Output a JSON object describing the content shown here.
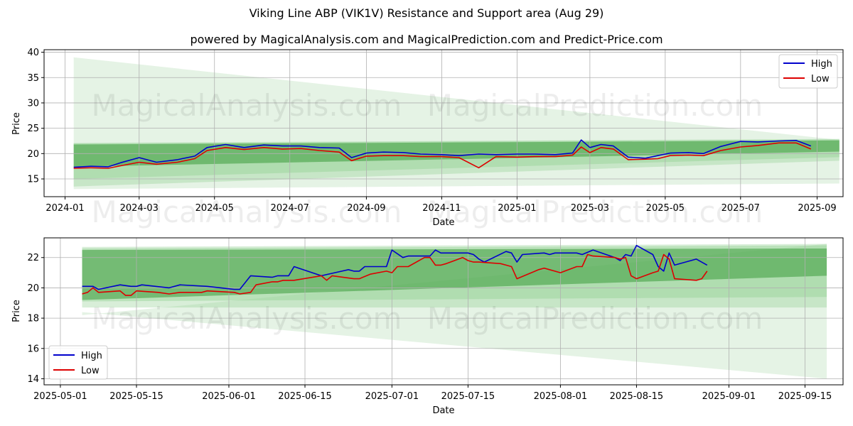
{
  "title": "Viking Line ABP (VIK1V) Resistance and Support area (Aug 29)",
  "subtitle": "powered by MagicalAnalysis.com and MagicalPrediction.com and Predict-Price.com",
  "watermarks": {
    "left": "MagicalAnalysis.com",
    "right": "MagicalPrediction.com"
  },
  "colors": {
    "high": "#0000cc",
    "low": "#dd0000",
    "band_dark": "#3a9a3a",
    "band_light": "#8fcf8f",
    "band_faint": "#cfe9cf"
  },
  "chart_data": [
    {
      "type": "line",
      "xlabel": "Date",
      "ylabel": "Price",
      "x_ticks": [
        "2024-01",
        "2024-03",
        "2024-05",
        "2024-07",
        "2024-09",
        "2024-11",
        "2025-01",
        "2025-03",
        "2025-05",
        "2025-07",
        "2025-09"
      ],
      "y_ticks": [
        "15",
        "20",
        "25",
        "30",
        "35",
        "40"
      ],
      "ylim": [
        11.5,
        40.5
      ],
      "grid": true,
      "legend": "top-right",
      "series": [
        {
          "name": "High",
          "x": [
            "2024-01-08",
            "2024-01-22",
            "2024-02-05",
            "2024-02-15",
            "2024-03-01",
            "2024-03-15",
            "2024-04-01",
            "2024-04-15",
            "2024-04-25",
            "2024-05-10",
            "2024-05-25",
            "2024-06-10",
            "2024-06-25",
            "2024-07-10",
            "2024-07-25",
            "2024-08-10",
            "2024-08-20",
            "2024-09-01",
            "2024-09-15",
            "2024-10-01",
            "2024-10-15",
            "2024-11-01",
            "2024-11-15",
            "2024-12-01",
            "2024-12-15",
            "2025-01-01",
            "2025-01-15",
            "2025-02-01",
            "2025-02-15",
            "2025-02-22",
            "2025-03-01",
            "2025-03-10",
            "2025-03-20",
            "2025-04-01",
            "2025-04-15",
            "2025-04-25",
            "2025-05-05",
            "2025-05-20",
            "2025-06-01",
            "2025-06-15",
            "2025-07-01",
            "2025-07-15",
            "2025-08-01",
            "2025-08-15",
            "2025-08-27"
          ],
          "values": [
            17.3,
            17.5,
            17.4,
            18.2,
            19.2,
            18.3,
            18.8,
            19.5,
            21.2,
            21.8,
            21.2,
            21.7,
            21.5,
            21.5,
            21.2,
            21.1,
            19.2,
            20.1,
            20.3,
            20.2,
            19.9,
            19.8,
            19.6,
            19.9,
            19.8,
            19.9,
            19.9,
            19.8,
            20.1,
            22.7,
            21.2,
            21.8,
            21.5,
            19.3,
            19.1,
            19.6,
            20.1,
            20.2,
            20.0,
            21.4,
            22.4,
            22.3,
            22.5,
            22.6,
            21.5
          ]
        },
        {
          "name": "Low",
          "x": [
            "2024-01-08",
            "2024-01-22",
            "2024-02-05",
            "2024-02-15",
            "2024-03-01",
            "2024-03-15",
            "2024-04-01",
            "2024-04-15",
            "2024-04-25",
            "2024-05-10",
            "2024-05-25",
            "2024-06-10",
            "2024-06-25",
            "2024-07-10",
            "2024-07-25",
            "2024-08-10",
            "2024-08-20",
            "2024-09-01",
            "2024-09-15",
            "2024-10-01",
            "2024-10-15",
            "2024-11-01",
            "2024-11-15",
            "2024-12-01",
            "2024-12-15",
            "2025-01-01",
            "2025-01-15",
            "2025-02-01",
            "2025-02-15",
            "2025-02-22",
            "2025-03-01",
            "2025-03-10",
            "2025-03-20",
            "2025-04-01",
            "2025-04-15",
            "2025-04-25",
            "2025-05-05",
            "2025-05-20",
            "2025-06-01",
            "2025-06-15",
            "2025-07-01",
            "2025-07-15",
            "2025-08-01",
            "2025-08-15",
            "2025-08-27"
          ],
          "values": [
            17.1,
            17.2,
            17.1,
            17.6,
            18.3,
            17.9,
            18.3,
            19.0,
            20.6,
            21.2,
            20.8,
            21.2,
            20.9,
            21.0,
            20.6,
            20.3,
            18.6,
            19.5,
            19.6,
            19.6,
            19.4,
            19.4,
            19.2,
            17.2,
            19.4,
            19.3,
            19.4,
            19.4,
            19.7,
            21.3,
            20.2,
            21.2,
            20.9,
            18.8,
            18.9,
            19.0,
            19.6,
            19.7,
            19.6,
            20.6,
            21.3,
            21.6,
            22.1,
            22.1,
            20.9
          ]
        }
      ]
    },
    {
      "type": "line",
      "xlabel": "Date",
      "ylabel": "Price",
      "x_ticks": [
        "2025-05-01",
        "2025-05-15",
        "2025-06-01",
        "2025-06-15",
        "2025-07-01",
        "2025-07-15",
        "2025-08-01",
        "2025-08-15",
        "2025-09-01",
        "2025-09-15"
      ],
      "y_ticks": [
        "14",
        "16",
        "18",
        "20",
        "22"
      ],
      "ylim": [
        13.6,
        23.3
      ],
      "grid": true,
      "legend": "bottom-left",
      "series": [
        {
          "name": "High",
          "x": [
            "2025-05-05",
            "2025-05-07",
            "2025-05-08",
            "2025-05-12",
            "2025-05-14",
            "2025-05-15",
            "2025-05-16",
            "2025-05-21",
            "2025-05-23",
            "2025-05-28",
            "2025-06-02",
            "2025-06-03",
            "2025-06-05",
            "2025-06-09",
            "2025-06-10",
            "2025-06-12",
            "2025-06-13",
            "2025-06-18",
            "2025-06-23",
            "2025-06-24",
            "2025-06-25",
            "2025-06-26",
            "2025-06-30",
            "2025-07-01",
            "2025-07-03",
            "2025-07-04",
            "2025-07-08",
            "2025-07-09",
            "2025-07-10",
            "2025-07-15",
            "2025-07-16",
            "2025-07-17",
            "2025-07-18",
            "2025-07-22",
            "2025-07-23",
            "2025-07-24",
            "2025-07-25",
            "2025-07-29",
            "2025-07-30",
            "2025-07-31",
            "2025-08-04",
            "2025-08-05",
            "2025-08-07",
            "2025-08-11",
            "2025-08-12",
            "2025-08-13",
            "2025-08-14",
            "2025-08-15",
            "2025-08-18",
            "2025-08-19",
            "2025-08-20",
            "2025-08-21",
            "2025-08-22",
            "2025-08-26",
            "2025-08-28"
          ],
          "values": [
            20.1,
            20.1,
            19.9,
            20.2,
            20.1,
            20.1,
            20.2,
            20.0,
            20.2,
            20.1,
            19.9,
            19.9,
            20.8,
            20.7,
            20.8,
            20.8,
            21.4,
            20.8,
            21.2,
            21.1,
            21.1,
            21.4,
            21.4,
            22.5,
            22.0,
            22.1,
            22.1,
            22.5,
            22.3,
            22.3,
            22.2,
            21.9,
            21.7,
            22.4,
            22.3,
            21.7,
            22.2,
            22.3,
            22.2,
            22.3,
            22.3,
            22.2,
            22.5,
            22.0,
            21.8,
            22.2,
            22.1,
            22.8,
            22.2,
            21.4,
            21.1,
            22.3,
            21.5,
            21.9,
            21.5
          ]
        },
        {
          "name": "Low",
          "x": [
            "2025-05-05",
            "2025-05-06",
            "2025-05-07",
            "2025-05-08",
            "2025-05-12",
            "2025-05-13",
            "2025-05-14",
            "2025-05-15",
            "2025-05-19",
            "2025-05-21",
            "2025-05-23",
            "2025-05-27",
            "2025-05-28",
            "2025-06-02",
            "2025-06-03",
            "2025-06-05",
            "2025-06-06",
            "2025-06-09",
            "2025-06-10",
            "2025-06-11",
            "2025-06-13",
            "2025-06-18",
            "2025-06-19",
            "2025-06-20",
            "2025-06-24",
            "2025-06-25",
            "2025-06-27",
            "2025-06-30",
            "2025-07-01",
            "2025-07-02",
            "2025-07-03",
            "2025-07-04",
            "2025-07-07",
            "2025-07-08",
            "2025-07-09",
            "2025-07-10",
            "2025-07-11",
            "2025-07-14",
            "2025-07-15",
            "2025-07-16",
            "2025-07-17",
            "2025-07-21",
            "2025-07-22",
            "2025-07-23",
            "2025-07-24",
            "2025-07-28",
            "2025-07-29",
            "2025-07-30",
            "2025-08-01",
            "2025-08-04",
            "2025-08-05",
            "2025-08-06",
            "2025-08-07",
            "2025-08-11",
            "2025-08-12",
            "2025-08-13",
            "2025-08-14",
            "2025-08-15",
            "2025-08-18",
            "2025-08-19",
            "2025-08-20",
            "2025-08-21",
            "2025-08-22",
            "2025-08-26",
            "2025-08-27",
            "2025-08-28"
          ],
          "values": [
            19.6,
            19.7,
            20.0,
            19.7,
            19.8,
            19.5,
            19.5,
            19.8,
            19.7,
            19.6,
            19.7,
            19.7,
            19.8,
            19.7,
            19.6,
            19.7,
            20.2,
            20.4,
            20.4,
            20.5,
            20.5,
            20.8,
            20.5,
            20.8,
            20.6,
            20.6,
            20.9,
            21.1,
            21.0,
            21.4,
            21.4,
            21.4,
            22.0,
            22.0,
            21.5,
            21.5,
            21.6,
            22.0,
            21.8,
            21.7,
            21.7,
            21.6,
            21.5,
            21.4,
            20.6,
            21.2,
            21.3,
            21.2,
            21.0,
            21.4,
            21.4,
            22.2,
            22.1,
            22.0,
            21.9,
            22.0,
            20.8,
            20.6,
            21.0,
            21.1,
            22.2,
            21.9,
            20.6,
            20.5,
            20.6,
            21.1
          ]
        }
      ]
    }
  ]
}
